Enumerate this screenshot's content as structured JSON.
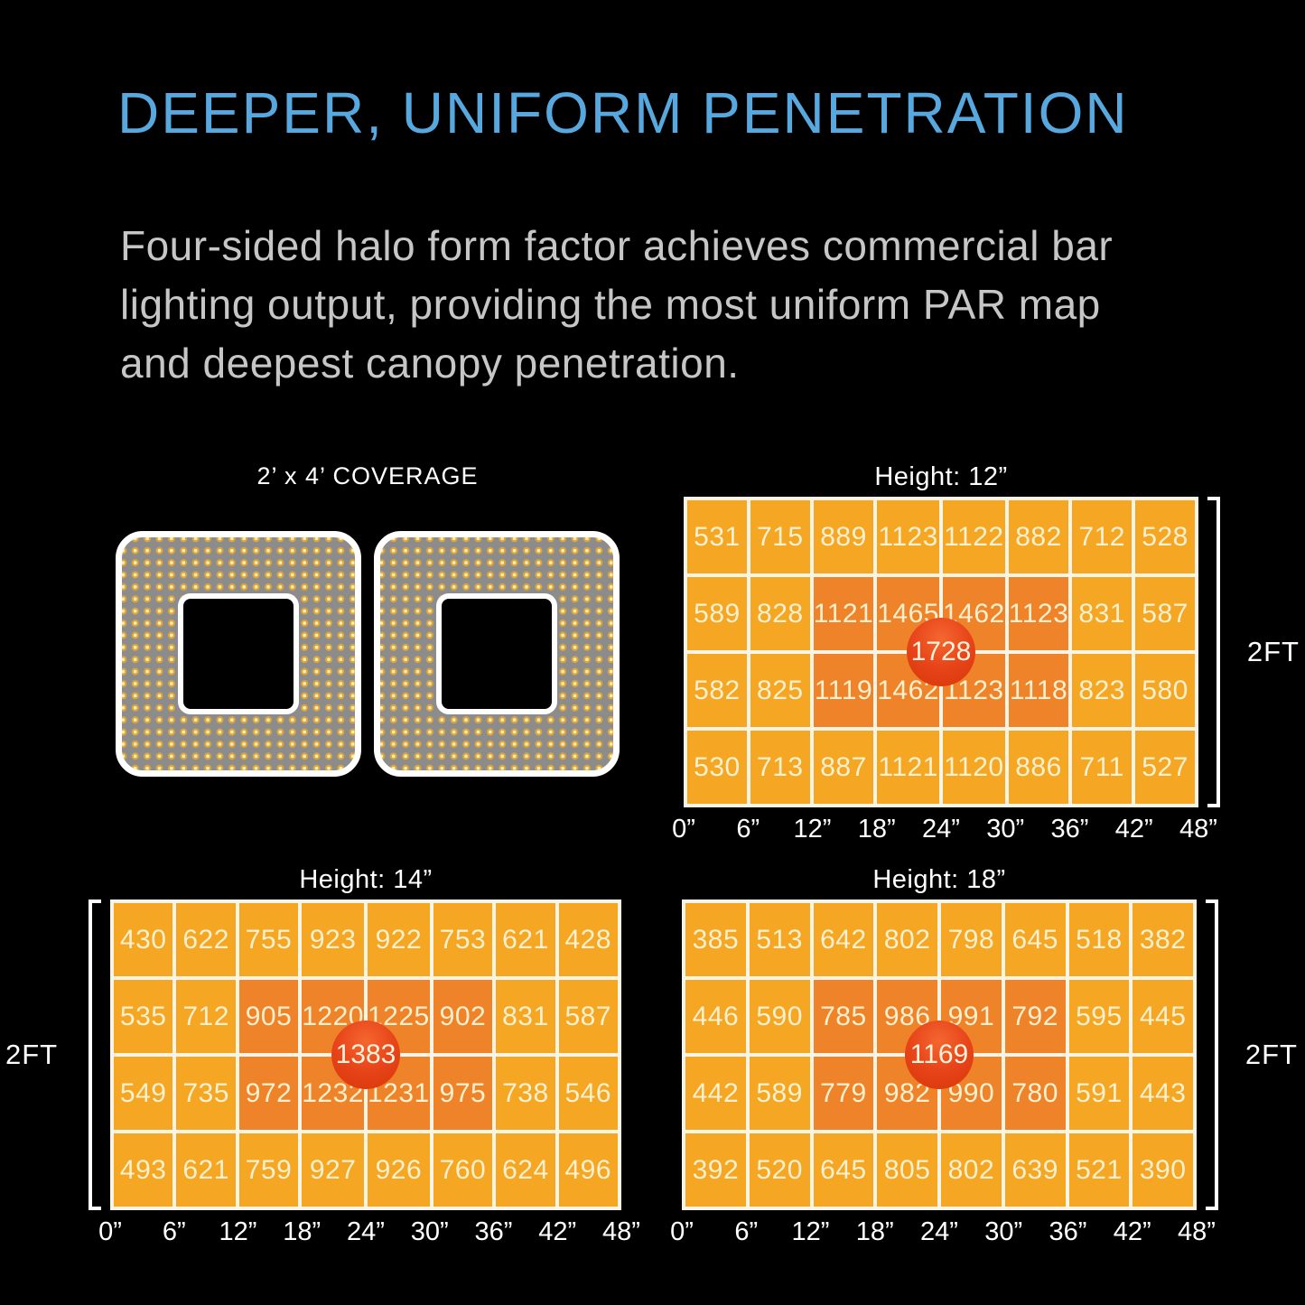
{
  "header": {
    "title": "DEEPER, UNIFORM PENETRATION",
    "body": "Four-sided halo form factor achieves commercial bar lighting output, providing the most uniform PAR map and deepest canopy penetration.",
    "body_lines": [
      "Four-sided halo form factor achieves commercial bar",
      "lighting output, providing the most uniform PAR map",
      "and deepest canopy penetration."
    ]
  },
  "coverage": {
    "label": "2’ x 4’ COVERAGE"
  },
  "colors": {
    "accent_blue": "#57A8DE",
    "body_gray": "#C6C6C6",
    "grid_line": "#FAF4E6",
    "cell_normal": "#F5A622",
    "cell_hot": "#EF8329",
    "cell_text": "#FBF0CF",
    "peak_red": "#E8451A",
    "panel_gray": "#8C8C8C",
    "led_gold": "#DFA63B",
    "led_core": "#FFEFAE"
  },
  "chart_data": [
    {
      "type": "heatmap",
      "title": "Height: 12”",
      "center_value": 1728,
      "y_label": "2FT",
      "bracket_side": "right",
      "x_ticks": [
        "0”",
        "6”",
        "12”",
        "18”",
        "24”",
        "30”",
        "36”",
        "42”",
        "48”"
      ],
      "rows": [
        [
          531,
          715,
          889,
          1123,
          1122,
          882,
          712,
          528
        ],
        [
          589,
          828,
          1121,
          1465,
          1462,
          1123,
          831,
          587
        ],
        [
          582,
          825,
          1119,
          1462,
          1123,
          1118,
          823,
          580
        ],
        [
          530,
          713,
          887,
          1121,
          1120,
          886,
          711,
          527
        ]
      ],
      "hot_region": {
        "row_start": 1,
        "row_end": 2,
        "col_start": 2,
        "col_end": 5
      }
    },
    {
      "type": "heatmap",
      "title": "Height: 14”",
      "center_value": 1383,
      "y_label": "2FT",
      "bracket_side": "left",
      "x_ticks": [
        "0”",
        "6”",
        "12”",
        "18”",
        "24”",
        "30”",
        "36”",
        "42”",
        "48”"
      ],
      "rows": [
        [
          430,
          622,
          755,
          923,
          922,
          753,
          621,
          428
        ],
        [
          535,
          712,
          905,
          1220,
          1225,
          902,
          831,
          587
        ],
        [
          549,
          735,
          972,
          1232,
          1231,
          975,
          738,
          546
        ],
        [
          493,
          621,
          759,
          927,
          926,
          760,
          624,
          496
        ]
      ],
      "hot_region": {
        "row_start": 1,
        "row_end": 2,
        "col_start": 2,
        "col_end": 5
      }
    },
    {
      "type": "heatmap",
      "title": "Height: 18”",
      "center_value": 1169,
      "y_label": "2FT",
      "bracket_side": "right",
      "x_ticks": [
        "0”",
        "6”",
        "12”",
        "18”",
        "24”",
        "30”",
        "36”",
        "42”",
        "48”"
      ],
      "rows": [
        [
          385,
          513,
          642,
          802,
          798,
          645,
          518,
          382
        ],
        [
          446,
          590,
          785,
          986,
          991,
          792,
          595,
          445
        ],
        [
          442,
          589,
          779,
          982,
          990,
          780,
          591,
          443
        ],
        [
          392,
          520,
          645,
          805,
          802,
          639,
          521,
          390
        ]
      ],
      "hot_region": {
        "row_start": 1,
        "row_end": 2,
        "col_start": 2,
        "col_end": 5
      }
    }
  ]
}
